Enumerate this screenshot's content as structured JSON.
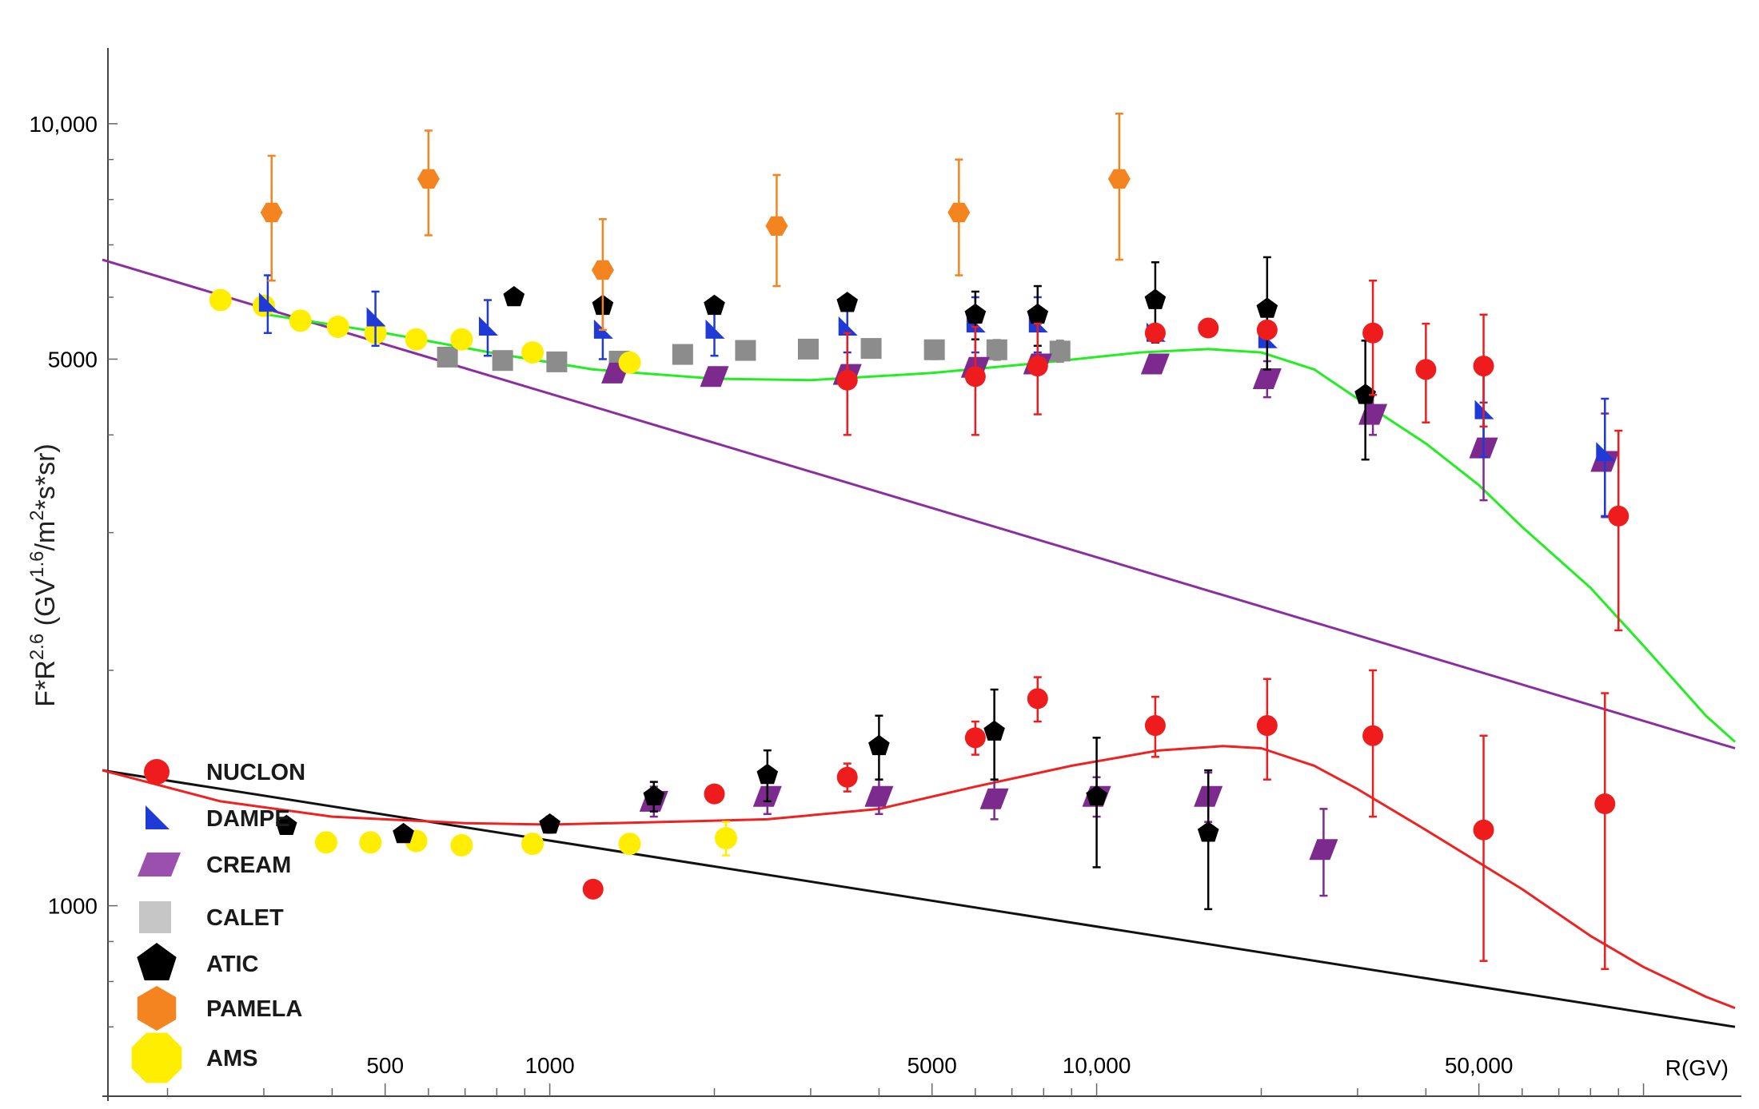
{
  "chart_data": {
    "type": "scatter",
    "title": "",
    "xlabel": "R(GV)",
    "ylabel": "F*R^2.6 (GV^1.6/m^2*s*sr)",
    "ylabel_parts": {
      "f": "F*R",
      "exp1": "2.6",
      "mid": " (GV",
      "exp2": "1.6",
      "per": "/m",
      "exp3": "2",
      "tail": "*s*sr)"
    },
    "xscale": "log",
    "yscale": "log",
    "xlim": [
      152,
      147000
    ],
    "ylim": [
      645,
      12500
    ],
    "x_ticks": [
      {
        "v": 500,
        "label": "500"
      },
      {
        "v": 1000,
        "label": "1000"
      },
      {
        "v": 5000,
        "label": "5000"
      },
      {
        "v": 10000,
        "label": "10,000"
      },
      {
        "v": 50000,
        "label": "50,000"
      }
    ],
    "x_axis_label": "R(GV)",
    "y_ticks": [
      {
        "v": 10000,
        "label": "10,000"
      },
      {
        "v": 5000,
        "label": "5000"
      },
      {
        "v": 1000,
        "label": "1000"
      }
    ],
    "legend_position": "bottom-left",
    "colors": {
      "NUCLON": "#ee1c1c",
      "DAMPE": "#1f3ad6",
      "CREAM": "#7d2a8e",
      "CREAM_fill": "#9b4fae",
      "CALET": "#8c8c8c",
      "CALET_fill": "#c6c6c6",
      "ATIC": "#000000",
      "PAMELA": "#f4841f",
      "AMS": "#ffee00",
      "fit_upper": "#22ee22",
      "fit_lower": "#ee2222",
      "powerlaw_upper": "#8a2ea0",
      "powerlaw_lower": "#111111"
    },
    "series": [
      {
        "name": "NUCLON",
        "legend": "NUCLON",
        "marker": "circle",
        "group": "proton",
        "x": [
          3500,
          6000,
          7800,
          12800,
          16000,
          20500,
          32000,
          40000,
          51000,
          90000
        ],
        "y": [
          4700,
          4750,
          4900,
          5400,
          5480,
          5450,
          5400,
          4850,
          4900,
          3150
        ],
        "err": [
          700,
          750,
          650,
          0,
          0,
          0,
          900,
          700,
          800,
          900
        ]
      },
      {
        "name": "NUCLON",
        "legend": null,
        "marker": "circle",
        "group": "helium",
        "x": [
          1200,
          2000,
          3500,
          6000,
          7800,
          12800,
          20500,
          32000,
          51000,
          85000
        ],
        "y": [
          1050,
          1390,
          1460,
          1640,
          1840,
          1700,
          1700,
          1650,
          1250,
          1350
        ],
        "err": [
          0,
          0,
          60,
          80,
          120,
          150,
          250,
          350,
          400,
          520
        ]
      },
      {
        "name": "DAMPE",
        "legend": "DAMPE",
        "marker": "triangle",
        "group": "proton",
        "x": [
          305,
          480,
          770,
          1250,
          2000,
          3500,
          6000,
          7800,
          12800,
          20500,
          51000,
          85000
        ],
        "y": [
          5900,
          5650,
          5500,
          5450,
          5450,
          5500,
          5550,
          5550,
          5400,
          5300,
          4300,
          3800
        ],
        "err": [
          500,
          450,
          450,
          450,
          400,
          400,
          450,
          450,
          0,
          0,
          550,
          650
        ]
      },
      {
        "name": "CREAM",
        "legend": "CREAM",
        "marker": "parallelogram",
        "group": "proton",
        "x": [
          1320,
          2000,
          3500,
          6000,
          7800,
          12800,
          20500,
          32000,
          51000,
          85000
        ],
        "y": [
          4800,
          4750,
          4780,
          4880,
          4930,
          4930,
          4720,
          4250,
          3850,
          3700
        ],
        "err": [
          0,
          0,
          0,
          0,
          0,
          0,
          250,
          250,
          550,
          560
        ]
      },
      {
        "name": "CREAM",
        "legend": null,
        "marker": "parallelogram",
        "group": "helium",
        "x": [
          1550,
          2500,
          4000,
          6500,
          10000,
          16000,
          26000
        ],
        "y": [
          1360,
          1380,
          1380,
          1370,
          1380,
          1380,
          1180
        ],
        "err": [
          60,
          70,
          70,
          80,
          80,
          100,
          150
        ]
      },
      {
        "name": "CALET",
        "legend": "CALET",
        "marker": "square",
        "group": "proton",
        "x": [
          650,
          820,
          1030,
          1340,
          1750,
          2280,
          2970,
          3870,
          5050,
          6570,
          8570
        ],
        "y": [
          5030,
          4980,
          4960,
          4970,
          5070,
          5130,
          5150,
          5160,
          5140,
          5140,
          5120
        ],
        "err": [
          120,
          120,
          120,
          120,
          120,
          130,
          130,
          140,
          140,
          150,
          160
        ]
      },
      {
        "name": "ATIC",
        "legend": "ATIC",
        "marker": "pentagon",
        "group": "proton",
        "x": [
          860,
          1250,
          2000,
          3500,
          6000,
          7800,
          12800,
          20500,
          31000
        ],
        "y": [
          6000,
          5850,
          5850,
          5900,
          5700,
          5700,
          5950,
          5800,
          4500
        ],
        "err": [
          0,
          0,
          0,
          0,
          400,
          500,
          700,
          950,
          780
        ]
      },
      {
        "name": "ATIC",
        "legend": null,
        "marker": "pentagon",
        "group": "helium",
        "x": [
          330,
          540,
          1000,
          1550,
          2500,
          4000,
          6500,
          10000,
          16000
        ],
        "y": [
          1265,
          1235,
          1270,
          1380,
          1470,
          1600,
          1670,
          1380,
          1240
        ],
        "err": [
          0,
          0,
          30,
          60,
          110,
          150,
          220,
          260,
          250
        ]
      },
      {
        "name": "PAMELA",
        "legend": "PAMELA",
        "marker": "hexagon",
        "group": "proton",
        "x": [
          310,
          600,
          1250,
          2600,
          5600,
          11000
        ],
        "y": [
          7700,
          8500,
          6500,
          7400,
          7700,
          8500
        ],
        "err": [
          1400,
          1300,
          1050,
          1200,
          1300,
          1800
        ]
      },
      {
        "name": "AMS",
        "legend": "AMS",
        "marker": "circle-big",
        "group": "proton",
        "x": [
          250,
          300,
          350,
          410,
          480,
          570,
          690,
          930,
          1400
        ],
        "y": [
          5950,
          5850,
          5600,
          5500,
          5400,
          5300,
          5300,
          5100,
          4950
        ],
        "err": [
          0,
          0,
          0,
          0,
          0,
          0,
          0,
          0,
          0
        ]
      },
      {
        "name": "AMS",
        "legend": null,
        "marker": "circle-big",
        "group": "helium",
        "x": [
          390,
          470,
          570,
          690,
          930,
          1400,
          2100
        ],
        "y": [
          1205,
          1205,
          1210,
          1195,
          1200,
          1200,
          1220
        ],
        "err": [
          0,
          0,
          0,
          0,
          0,
          20,
          60
        ]
      }
    ],
    "fits": {
      "upper_curve": {
        "x": [
          305,
          500,
          800,
          1200,
          2000,
          3000,
          5000,
          8000,
          12000,
          16000,
          20000,
          25000,
          30000,
          40000,
          50000,
          60000,
          80000,
          100000,
          130000,
          147000
        ],
        "y": [
          5700,
          5400,
          5080,
          4850,
          4720,
          4700,
          4800,
          4950,
          5100,
          5150,
          5100,
          4850,
          4450,
          3900,
          3450,
          3050,
          2550,
          2150,
          1750,
          1620
        ]
      },
      "lower_curve": {
        "x": [
          152,
          250,
          400,
          700,
          1000,
          1500,
          2500,
          4000,
          6000,
          9000,
          13000,
          17000,
          20000,
          25000,
          30000,
          40000,
          60000,
          80000,
          100000,
          130000,
          147000
        ],
        "y": [
          1490,
          1360,
          1300,
          1275,
          1270,
          1278,
          1290,
          1330,
          1420,
          1510,
          1580,
          1600,
          1590,
          1510,
          1410,
          1250,
          1050,
          915,
          835,
          765,
          740
        ]
      },
      "upper_powerlaw": {
        "x": [
          152,
          147000
        ],
        "y": [
          6700,
          1590
        ]
      },
      "lower_powerlaw": {
        "x": [
          152,
          147000
        ],
        "y": [
          1490,
          700
        ]
      }
    }
  }
}
